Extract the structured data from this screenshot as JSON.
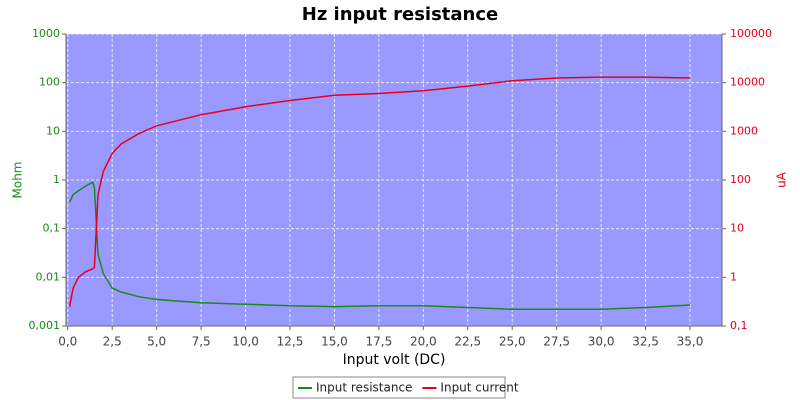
{
  "chart_data": {
    "type": "line",
    "title": "Hz input resistance",
    "xlabel": "Input volt (DC)",
    "ylabel": "Mohm",
    "y2label": "uA",
    "x": [
      0.1,
      0.3,
      0.6,
      1.0,
      1.4,
      1.5,
      1.7,
      2.0,
      2.5,
      3.0,
      4.0,
      5.0,
      7.5,
      10,
      12.5,
      15,
      17.5,
      20,
      22.5,
      25,
      27.5,
      30,
      32.5,
      35
    ],
    "series": [
      {
        "name": "Input resistance",
        "color": "#1a8a1a",
        "axis": "y",
        "values": [
          0.35,
          0.5,
          0.6,
          0.75,
          0.9,
          0.7,
          0.03,
          0.012,
          0.006,
          0.005,
          0.004,
          0.0035,
          0.003,
          0.0028,
          0.0026,
          0.0025,
          0.0026,
          0.0026,
          0.0024,
          0.0022,
          0.0022,
          0.0022,
          0.0024,
          0.0027
        ]
      },
      {
        "name": "Input current",
        "color": "#e8001a",
        "axis": "y2",
        "values": [
          0.25,
          0.6,
          1,
          1.3,
          1.5,
          1.6,
          50,
          150,
          350,
          550,
          900,
          1300,
          2200,
          3200,
          4300,
          5500,
          6000,
          6800,
          8500,
          11000,
          12500,
          13000,
          13000,
          12500
        ]
      }
    ],
    "xlim": [
      -0.1,
      36.8
    ],
    "xticks": [
      {
        "value": 0,
        "label": "0,0"
      },
      {
        "value": 2.5,
        "label": "2,5"
      },
      {
        "value": 5,
        "label": "5,0"
      },
      {
        "value": 7.5,
        "label": "7,5"
      },
      {
        "value": 10,
        "label": "10,0"
      },
      {
        "value": 12.5,
        "label": "12,5"
      },
      {
        "value": 15,
        "label": "15,0"
      },
      {
        "value": 17.5,
        "label": "17,5"
      },
      {
        "value": 20,
        "label": "20,0"
      },
      {
        "value": 22.5,
        "label": "22,5"
      },
      {
        "value": 25,
        "label": "25,0"
      },
      {
        "value": 27.5,
        "label": "27,5"
      },
      {
        "value": 30,
        "label": "30,0"
      },
      {
        "value": 32.5,
        "label": "32,5"
      },
      {
        "value": 35,
        "label": "35,0"
      }
    ],
    "ylim": [
      0.001,
      1000
    ],
    "yscale": "log",
    "yticks": [
      {
        "value": 0.001,
        "label": "0,001"
      },
      {
        "value": 0.01,
        "label": "0,01"
      },
      {
        "value": 0.1,
        "label": "0,1"
      },
      1,
      10,
      100,
      1000
    ],
    "y2lim": [
      0.1,
      100000
    ],
    "y2scale": "log",
    "y2ticks": [
      {
        "value": 0.1,
        "label": "0,1"
      },
      1,
      10,
      100,
      1000,
      10000,
      100000
    ],
    "grid": true,
    "legend": "bottom"
  }
}
